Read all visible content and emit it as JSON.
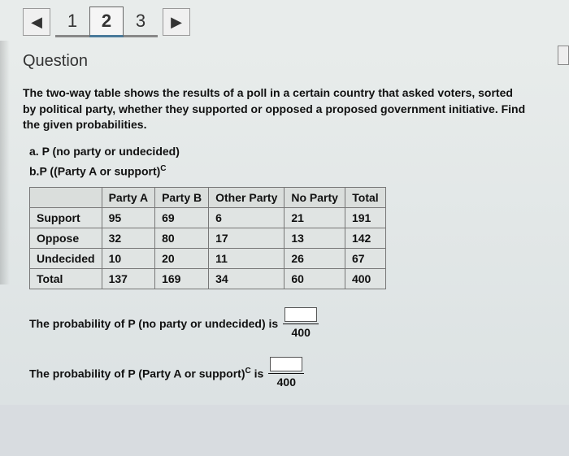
{
  "nav": {
    "prev_glyph": "◀",
    "next_glyph": "▶",
    "pages": [
      "1",
      "2",
      "3"
    ],
    "active_index": 1
  },
  "heading": "Question",
  "prompt": "The two-way table shows the results of a poll in a certain country that asked voters, sorted by political party, whether they supported or opposed a proposed government initiative. Find the given probabilities.",
  "parts": {
    "a": "a. P (no party or undecided)",
    "b_prefix": "b.P ((Party A or support)",
    "b_sup": "C"
  },
  "table": {
    "columns": [
      "",
      "Party A",
      "Party B",
      "Other Party",
      "No Party",
      "Total"
    ],
    "rows": [
      [
        "Support",
        "95",
        "69",
        "6",
        "21",
        "191"
      ],
      [
        "Oppose",
        "32",
        "80",
        "17",
        "13",
        "142"
      ],
      [
        "Undecided",
        "10",
        "20",
        "11",
        "26",
        "67"
      ],
      [
        "Total",
        "137",
        "169",
        "34",
        "60",
        "400"
      ]
    ],
    "cell_bg": "#e0e4e3",
    "header_bg": "#dadedc",
    "border_color": "#777"
  },
  "answers": {
    "line1_text": "The probability of P (no party or undecided) is",
    "line1_denom": "400",
    "line2_prefix": "The probability of P (Party A or support)",
    "line2_sup": "C",
    "line2_suffix": " is",
    "line2_denom": "400"
  },
  "colors": {
    "page_bg": "#d8dce0",
    "content_bg": "#e8eceb",
    "text": "#111"
  }
}
